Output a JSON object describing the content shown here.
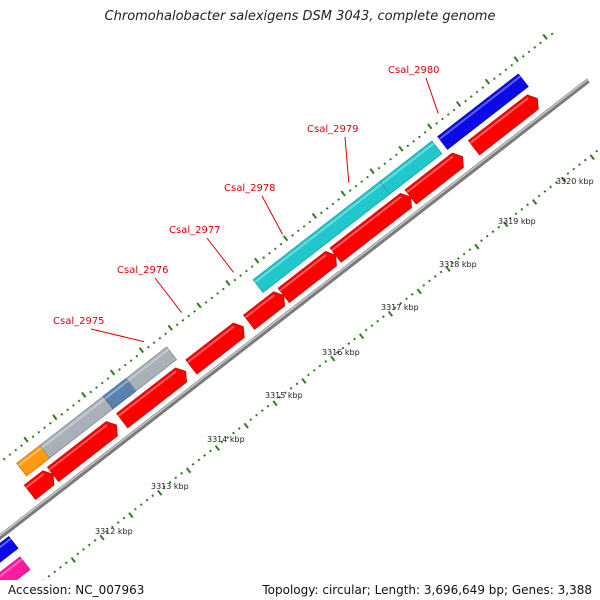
{
  "title": "Chromohalobacter salexigens DSM 3043, complete genome",
  "footer": {
    "accession": "Accession: NC_007963",
    "stats": "Topology: circular; Length: 3,696,649 bp; Genes: 3,388"
  },
  "colors": {
    "background": "#ffffff",
    "cds_red": "#ff0000",
    "cyan": "#20c8cc",
    "blue": "#0a0ae6",
    "gray": "#aab0b8",
    "steel_blue": "#5a82b0",
    "olive_green": "#6a9a2a",
    "orange": "#ff9a10",
    "magenta": "#ff1aa0",
    "backbone": "#888888",
    "tick_green": "#2e7d1e",
    "label_red": "#e00000"
  },
  "gene_labels": [
    "Csal_2975",
    "Csal_2976",
    "Csal_2977",
    "Csal_2978",
    "Csal_2979",
    "Csal_2980"
  ],
  "kbp_labels": [
    "3312 kbp",
    "3313 kbp",
    "3314 kbp",
    "3315 kbp",
    "3316 kbp",
    "3317 kbp",
    "3318 kbp",
    "3319 kbp",
    "3320 kbp"
  ],
  "segments": [
    {
      "track": "outer",
      "color": "orange",
      "start_kbp": 3312.6,
      "end_kbp": 3313.0
    },
    {
      "track": "outer",
      "color": "gray",
      "start_kbp": 3313.0,
      "end_kbp": 3314.1
    },
    {
      "track": "outer",
      "color": "steel_blue",
      "start_kbp": 3314.1,
      "end_kbp": 3314.5
    },
    {
      "track": "outer",
      "color": "gray",
      "start_kbp": 3314.5,
      "end_kbp": 3315.2
    },
    {
      "track": "outer",
      "color": "cyan",
      "start_kbp": 3316.7,
      "end_kbp": 3318.9
    },
    {
      "track": "outer",
      "color": "cyan",
      "start_kbp": 3318.9,
      "end_kbp": 3319.8
    },
    {
      "track": "outer",
      "color": "blue",
      "start_kbp": 3319.9,
      "end_kbp": 3321.3
    },
    {
      "track": "inner",
      "color": "cds_red",
      "start_kbp": 3312.5,
      "end_kbp": 3312.9
    },
    {
      "track": "inner",
      "color": "cds_red",
      "start_kbp": 3312.9,
      "end_kbp": 3314.0
    },
    {
      "track": "inner",
      "color": "cds_red",
      "start_kbp": 3314.1,
      "end_kbp": 3315.2
    },
    {
      "track": "inner",
      "color": "cds_red",
      "start_kbp": 3315.3,
      "end_kbp": 3316.2
    },
    {
      "track": "inner",
      "color": "cds_red",
      "start_kbp": 3316.3,
      "end_kbp": 3316.9
    },
    {
      "track": "inner",
      "color": "cds_red",
      "start_kbp": 3316.9,
      "end_kbp": 3317.8
    },
    {
      "track": "inner",
      "color": "cds_red",
      "start_kbp": 3317.8,
      "end_kbp": 3319.1
    },
    {
      "track": "inner",
      "color": "cds_red",
      "start_kbp": 3319.1,
      "end_kbp": 3320.0
    },
    {
      "track": "inner",
      "color": "cds_red",
      "start_kbp": 3320.2,
      "end_kbp": 3321.3
    },
    {
      "track": "lower",
      "color": "blue",
      "start_kbp": 3311.3,
      "end_kbp": 3311.9
    },
    {
      "track": "lowest",
      "color": "magenta",
      "start_kbp": 3311.3,
      "end_kbp": 3311.85
    }
  ],
  "gene_label_kbp": [
    3315.0,
    3315.65,
    3316.55,
    3317.4,
    3318.55,
    3320.1
  ]
}
